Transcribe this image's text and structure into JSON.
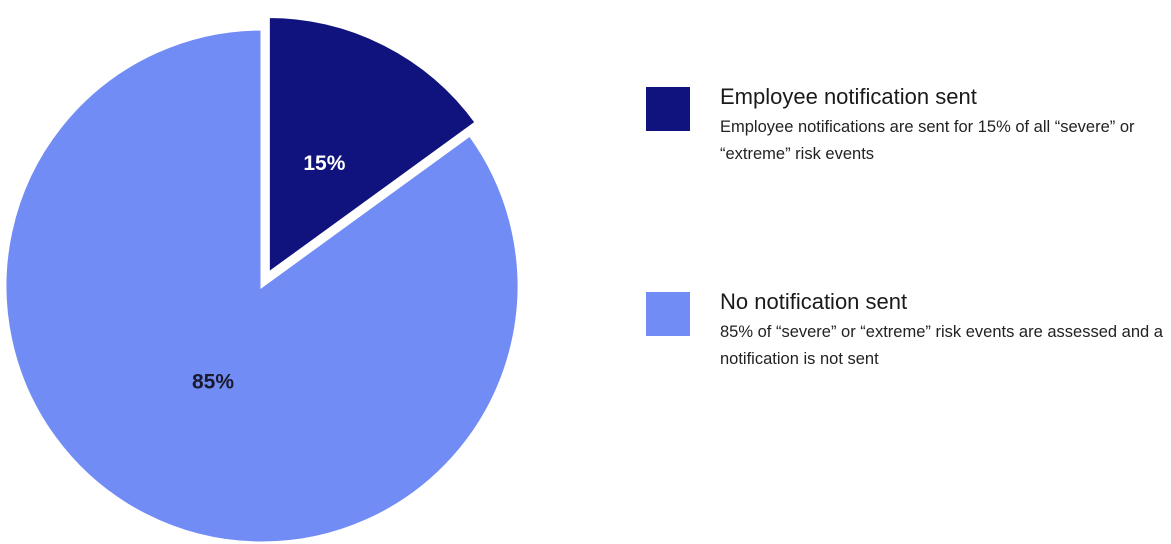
{
  "chart_data": {
    "type": "pie",
    "slices": [
      {
        "label": "Employee notification sent",
        "value": 15,
        "display": "15%",
        "color": "#10137d",
        "label_color": "#ffffff",
        "exploded": true,
        "description": "Employee notifications are sent for 15% of all “severe” or “extreme” risk events"
      },
      {
        "label": "No notification sent",
        "value": 85,
        "display": "85%",
        "color": "#728cf5",
        "label_color": "#1a1a2e",
        "exploded": false,
        "description": "85% of “severe” or “extreme” risk events are assessed and a notification is not sent"
      }
    ],
    "legend_position": "right"
  }
}
